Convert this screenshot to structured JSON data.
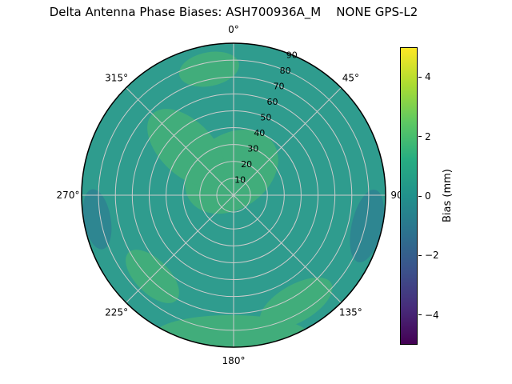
{
  "title": "Delta Antenna Phase Biases: ASH700936A_M    NONE GPS-L2",
  "chart_data": {
    "type": "heatmap",
    "projection": "polar",
    "title": "Delta Antenna Phase Biases: ASH700936A_M    NONE GPS-L2",
    "grid": true,
    "angular_ticks": [
      {
        "label": "0°",
        "angle_deg": 0
      },
      {
        "label": "45°",
        "angle_deg": 45
      },
      {
        "label": "90°",
        "angle_deg": 90
      },
      {
        "label": "135°",
        "angle_deg": 135
      },
      {
        "label": "180°",
        "angle_deg": 180
      },
      {
        "label": "225°",
        "angle_deg": 225
      },
      {
        "label": "270°",
        "angle_deg": 270
      },
      {
        "label": "315°",
        "angle_deg": 315
      }
    ],
    "radial_ticks": [
      10,
      20,
      30,
      40,
      50,
      60,
      70,
      80,
      90
    ],
    "radial_label_angle_deg": 22.5,
    "colorbar": {
      "label": "Bias (mm)",
      "ticks": [
        -4,
        -2,
        0,
        2,
        4
      ],
      "range": [
        -5,
        5
      ],
      "colormap": "viridis",
      "stops": [
        "#440154",
        "#472d7b",
        "#3b528b",
        "#2c728e",
        "#21918c",
        "#27ad81",
        "#5ec962",
        "#aadc32",
        "#fde725"
      ]
    },
    "colors": {
      "base": "#2f9c8e",
      "high": "#41ad7b",
      "low": "#2e8691",
      "grid": "#cccccc",
      "edge": "#000000"
    },
    "regions": [
      {
        "azimuth_deg": 355,
        "zenith": 14,
        "size_a": 30,
        "size_b": 22,
        "rotation": -35,
        "level": "high"
      },
      {
        "azimuth_deg": 315,
        "zenith": 40,
        "size_a": 28,
        "size_b": 16,
        "rotation": 45,
        "level": "high"
      },
      {
        "azimuth_deg": 349,
        "zenith": 76,
        "size_a": 18,
        "size_b": 10,
        "rotation": -11,
        "level": "high"
      },
      {
        "azimuth_deg": 181,
        "zenith": 83,
        "size_a": 46,
        "size_b": 12,
        "rotation": 0,
        "level": "high"
      },
      {
        "azimuth_deg": 150,
        "zenith": 74,
        "size_a": 24,
        "size_b": 11,
        "rotation": -30,
        "level": "high"
      },
      {
        "azimuth_deg": 225,
        "zenith": 68,
        "size_a": 20,
        "size_b": 10,
        "rotation": 45,
        "level": "high"
      },
      {
        "azimuth_deg": 260,
        "zenith": 82,
        "size_a": 18,
        "size_b": 8,
        "rotation": 80,
        "level": "low"
      },
      {
        "azimuth_deg": 103,
        "zenith": 81,
        "size_a": 22,
        "size_b": 9,
        "rotation": 103,
        "level": "low"
      }
    ],
    "values": {
      "units": "mm",
      "azimuth_deg": [
        0,
        45,
        90,
        135,
        180,
        225,
        270,
        315
      ],
      "zenith_deg": [
        0,
        30,
        60,
        90
      ],
      "bias_mm": [
        [
          0.8,
          0.8,
          0.8,
          0.8,
          0.8,
          0.8,
          0.8,
          0.8
        ],
        [
          0.6,
          0.2,
          0.1,
          0.2,
          0.4,
          0.3,
          0.3,
          0.9
        ],
        [
          0.3,
          0.0,
          -0.2,
          0.4,
          0.8,
          0.6,
          0.1,
          0.5
        ],
        [
          0.7,
          0.1,
          -0.4,
          0.6,
          1.0,
          0.5,
          -0.2,
          0.2
        ]
      ]
    }
  }
}
